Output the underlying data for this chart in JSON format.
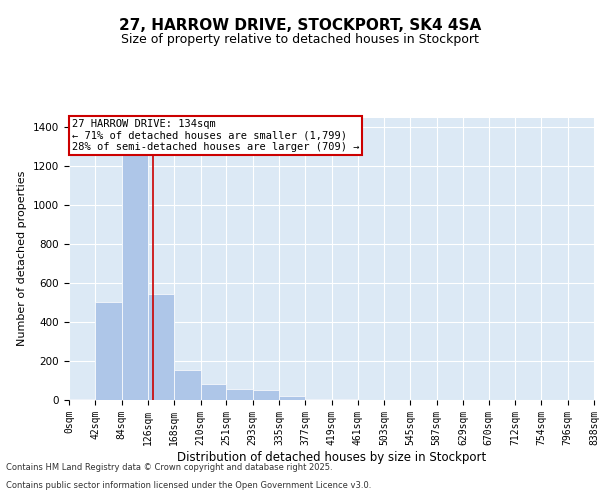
{
  "title1": "27, HARROW DRIVE, STOCKPORT, SK4 4SA",
  "title2": "Size of property relative to detached houses in Stockport",
  "xlabel": "Distribution of detached houses by size in Stockport",
  "ylabel": "Number of detached properties",
  "bar_edges": [
    0,
    42,
    84,
    126,
    168,
    210,
    251,
    293,
    335,
    377,
    419,
    461,
    503,
    545,
    587,
    629,
    670,
    712,
    754,
    796,
    838
  ],
  "bar_heights": [
    5,
    505,
    1270,
    545,
    155,
    80,
    55,
    50,
    20,
    5,
    3,
    0,
    0,
    0,
    0,
    0,
    0,
    0,
    0,
    0
  ],
  "bar_color": "#aec6e8",
  "vline_x": 134,
  "vline_color": "#cc0000",
  "ylim": [
    0,
    1450
  ],
  "xlim": [
    0,
    838
  ],
  "annotation_title": "27 HARROW DRIVE: 134sqm",
  "annotation_line1": "← 71% of detached houses are smaller (1,799)",
  "annotation_line2": "28% of semi-detached houses are larger (709) →",
  "annotation_box_color": "#cc0000",
  "footer1": "Contains HM Land Registry data © Crown copyright and database right 2025.",
  "footer2": "Contains public sector information licensed under the Open Government Licence v3.0.",
  "plot_bg_color": "#dce9f5",
  "tick_labels": [
    "0sqm",
    "42sqm",
    "84sqm",
    "126sqm",
    "168sqm",
    "210sqm",
    "251sqm",
    "293sqm",
    "335sqm",
    "377sqm",
    "419sqm",
    "461sqm",
    "503sqm",
    "545sqm",
    "587sqm",
    "629sqm",
    "670sqm",
    "712sqm",
    "754sqm",
    "796sqm",
    "838sqm"
  ],
  "yticks": [
    0,
    200,
    400,
    600,
    800,
    1000,
    1200,
    1400
  ],
  "title1_fontsize": 11,
  "title2_fontsize": 9,
  "xlabel_fontsize": 8.5,
  "ylabel_fontsize": 8,
  "tick_fontsize": 7,
  "footer_fontsize": 6,
  "annot_fontsize": 7.5
}
